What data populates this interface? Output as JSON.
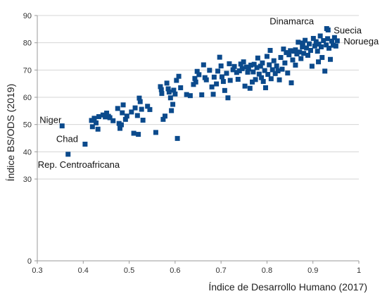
{
  "chart_data": {
    "type": "scatter",
    "title": "",
    "xlabel": "Índice de Desarrollo Humano (2017)",
    "ylabel": "Índice BS/ODS (2019)",
    "xlim": [
      0.3,
      1
    ],
    "ylim": [
      0,
      90
    ],
    "xticks": [
      "0.3",
      "0.4",
      "0.5",
      "0.6",
      "0.7",
      "0.8",
      "0.9",
      "1"
    ],
    "yticks": [
      "0",
      "30",
      "40",
      "50",
      "60",
      "70",
      "80",
      "90"
    ],
    "grid": "horizontal",
    "marker_color": "#0b4a8c",
    "annotations": [
      {
        "text": "Dinamarca",
        "x": 0.93,
        "y": 85.2
      },
      {
        "text": "Suecia",
        "x": 0.933,
        "y": 84.7
      },
      {
        "text": "Noruega",
        "x": 0.953,
        "y": 80.7
      },
      {
        "text": "Niger",
        "x": 0.354,
        "y": 49.5
      },
      {
        "text": "Chad",
        "x": 0.404,
        "y": 42.8
      },
      {
        "text": "Rep. Centroafricana",
        "x": 0.367,
        "y": 39.1
      }
    ],
    "points": [
      [
        0.354,
        49.5
      ],
      [
        0.367,
        39.1
      ],
      [
        0.404,
        42.8
      ],
      [
        0.418,
        51.5
      ],
      [
        0.42,
        49.2
      ],
      [
        0.424,
        52.3
      ],
      [
        0.428,
        50.6
      ],
      [
        0.432,
        48.3
      ],
      [
        0.434,
        52.9
      ],
      [
        0.443,
        53.5
      ],
      [
        0.448,
        52.8
      ],
      [
        0.451,
        54.2
      ],
      [
        0.455,
        53.0
      ],
      [
        0.458,
        52.5
      ],
      [
        0.465,
        51.4
      ],
      [
        0.475,
        55.9
      ],
      [
        0.478,
        50.4
      ],
      [
        0.48,
        48.6
      ],
      [
        0.483,
        49.9
      ],
      [
        0.485,
        54.3
      ],
      [
        0.487,
        57.2
      ],
      [
        0.492,
        51.9
      ],
      [
        0.495,
        53.1
      ],
      [
        0.505,
        54.6
      ],
      [
        0.51,
        46.8
      ],
      [
        0.513,
        56.1
      ],
      [
        0.518,
        53.3
      ],
      [
        0.52,
        46.4
      ],
      [
        0.522,
        59.7
      ],
      [
        0.524,
        58.4
      ],
      [
        0.527,
        55.6
      ],
      [
        0.53,
        51.6
      ],
      [
        0.54,
        56.7
      ],
      [
        0.545,
        55.5
      ],
      [
        0.558,
        47.1
      ],
      [
        0.568,
        63.9
      ],
      [
        0.57,
        62.8
      ],
      [
        0.571,
        61.4
      ],
      [
        0.574,
        51.9
      ],
      [
        0.578,
        53.1
      ],
      [
        0.582,
        65.2
      ],
      [
        0.585,
        63.1
      ],
      [
        0.587,
        61.9
      ],
      [
        0.59,
        59.8
      ],
      [
        0.592,
        55.1
      ],
      [
        0.595,
        57.4
      ],
      [
        0.597,
        62.6
      ],
      [
        0.6,
        61.2
      ],
      [
        0.603,
        66.2
      ],
      [
        0.605,
        44.9
      ],
      [
        0.608,
        67.7
      ],
      [
        0.612,
        63.5
      ],
      [
        0.625,
        61.0
      ],
      [
        0.633,
        60.6
      ],
      [
        0.64,
        64.7
      ],
      [
        0.643,
        66.9
      ],
      [
        0.645,
        65.6
      ],
      [
        0.648,
        69.5
      ],
      [
        0.652,
        68.3
      ],
      [
        0.658,
        60.9
      ],
      [
        0.662,
        71.9
      ],
      [
        0.665,
        67.2
      ],
      [
        0.668,
        66.4
      ],
      [
        0.675,
        69.9
      ],
      [
        0.68,
        63.8
      ],
      [
        0.683,
        61.1
      ],
      [
        0.685,
        67.4
      ],
      [
        0.69,
        64.9
      ],
      [
        0.693,
        69.6
      ],
      [
        0.697,
        74.7
      ],
      [
        0.7,
        71.5
      ],
      [
        0.702,
        67.5
      ],
      [
        0.705,
        65.8
      ],
      [
        0.708,
        62.5
      ],
      [
        0.712,
        68.8
      ],
      [
        0.715,
        59.8
      ],
      [
        0.718,
        72.3
      ],
      [
        0.72,
        66.2
      ],
      [
        0.726,
        70.1
      ],
      [
        0.729,
        71.3
      ],
      [
        0.734,
        69.1
      ],
      [
        0.737,
        66.6
      ],
      [
        0.74,
        69.7
      ],
      [
        0.743,
        72.2
      ],
      [
        0.746,
        70.5
      ],
      [
        0.749,
        73.0
      ],
      [
        0.752,
        64.1
      ],
      [
        0.755,
        71.1
      ],
      [
        0.758,
        69.2
      ],
      [
        0.76,
        70.4
      ],
      [
        0.763,
        63.3
      ],
      [
        0.765,
        71.8
      ],
      [
        0.768,
        65.6
      ],
      [
        0.77,
        69.3
      ],
      [
        0.772,
        72.1
      ],
      [
        0.775,
        66.5
      ],
      [
        0.778,
        70.9
      ],
      [
        0.78,
        74.4
      ],
      [
        0.783,
        68.5
      ],
      [
        0.786,
        71.4
      ],
      [
        0.788,
        67.2
      ],
      [
        0.79,
        72.6
      ],
      [
        0.792,
        65.8
      ],
      [
        0.795,
        69.8
      ],
      [
        0.797,
        63.5
      ],
      [
        0.8,
        75.0
      ],
      [
        0.802,
        68.4
      ],
      [
        0.805,
        71.9
      ],
      [
        0.807,
        77.2
      ],
      [
        0.809,
        66.8
      ],
      [
        0.812,
        70.1
      ],
      [
        0.815,
        73.4
      ],
      [
        0.818,
        68.7
      ],
      [
        0.821,
        71.5
      ],
      [
        0.824,
        69.7
      ],
      [
        0.827,
        66.4
      ],
      [
        0.83,
        74.6
      ],
      [
        0.833,
        70.3
      ],
      [
        0.836,
        77.7
      ],
      [
        0.839,
        72.6
      ],
      [
        0.842,
        76.4
      ],
      [
        0.845,
        68.9
      ],
      [
        0.848,
        75.6
      ],
      [
        0.851,
        77.1
      ],
      [
        0.853,
        65.3
      ],
      [
        0.856,
        73.7
      ],
      [
        0.859,
        76.9
      ],
      [
        0.862,
        71.8
      ],
      [
        0.865,
        75.9
      ],
      [
        0.868,
        80.2
      ],
      [
        0.871,
        76.6
      ],
      [
        0.874,
        74.2
      ],
      [
        0.877,
        78.5
      ],
      [
        0.88,
        76.1
      ],
      [
        0.883,
        80.9
      ],
      [
        0.886,
        78.1
      ],
      [
        0.889,
        75.4
      ],
      [
        0.892,
        79.6
      ],
      [
        0.895,
        77.2
      ],
      [
        0.898,
        71.4
      ],
      [
        0.901,
        81.6
      ],
      [
        0.904,
        78.8
      ],
      [
        0.907,
        80.4
      ],
      [
        0.91,
        76.9
      ],
      [
        0.913,
        79.5
      ],
      [
        0.916,
        82.5
      ],
      [
        0.918,
        78.5
      ],
      [
        0.92,
        74.6
      ],
      [
        0.923,
        80.8
      ],
      [
        0.926,
        69.6
      ],
      [
        0.929,
        79.2
      ],
      [
        0.93,
        85.2
      ],
      [
        0.932,
        81.5
      ],
      [
        0.933,
        84.7
      ],
      [
        0.935,
        78.0
      ],
      [
        0.938,
        73.9
      ],
      [
        0.941,
        80.6
      ],
      [
        0.944,
        79.1
      ],
      [
        0.947,
        81.9
      ],
      [
        0.953,
        80.7
      ],
      [
        0.95,
        78.8
      ],
      [
        0.912,
        73.0
      ],
      [
        0.878,
        79.9
      ],
      [
        0.862,
        77.4
      ]
    ]
  }
}
